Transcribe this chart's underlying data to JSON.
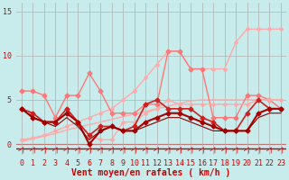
{
  "x": [
    0,
    1,
    2,
    3,
    4,
    5,
    6,
    7,
    8,
    9,
    10,
    11,
    12,
    13,
    14,
    15,
    16,
    17,
    18,
    19,
    20,
    21,
    22,
    23
  ],
  "background_color": "#c8ecec",
  "grid_color": "#b0b0b0",
  "xlabel": "Vent moyen/en rafales ( km/h )",
  "xlabel_color": "#cc0000",
  "yticks": [
    0,
    5,
    10,
    15
  ],
  "ylim": [
    -1.2,
    16
  ],
  "xlim": [
    -0.5,
    23.5
  ],
  "lines": [
    {
      "y": [
        0.3,
        0.6,
        0.9,
        1.2,
        1.6,
        1.9,
        2.2,
        2.5,
        2.8,
        3.1,
        3.4,
        3.7,
        4.0,
        4.3,
        4.6,
        4.9,
        5.0,
        5.0,
        5.0,
        5.0,
        5.0,
        5.0,
        5.0,
        5.0
      ],
      "color": "#ffaaaa",
      "lw": 1.0,
      "marker": null,
      "ms": 0,
      "zorder": 2
    },
    {
      "y": [
        0.5,
        0.7,
        1.0,
        1.5,
        2.0,
        2.5,
        3.0,
        3.5,
        4.0,
        5.0,
        6.0,
        7.5,
        9.0,
        10.5,
        10.5,
        8.5,
        8.5,
        8.5,
        8.5,
        11.5,
        13.0,
        13.0,
        13.0,
        13.0
      ],
      "color": "#ffaaaa",
      "lw": 1.0,
      "marker": "D",
      "ms": 2.0,
      "zorder": 2
    },
    {
      "y": [
        6.0,
        6.0,
        5.5,
        3.0,
        5.5,
        5.5,
        8.0,
        6.0,
        3.5,
        3.5,
        3.5,
        4.5,
        4.5,
        10.5,
        10.5,
        8.5,
        8.5,
        3.0,
        3.0,
        3.0,
        5.5,
        5.5,
        5.0,
        4.0
      ],
      "color": "#ff7777",
      "lw": 1.0,
      "marker": "D",
      "ms": 2.5,
      "zorder": 3
    },
    {
      "y": [
        4.0,
        3.5,
        2.5,
        2.5,
        4.0,
        2.5,
        1.0,
        0.5,
        0.5,
        2.5,
        2.5,
        3.5,
        4.0,
        5.0,
        4.5,
        4.5,
        4.5,
        4.5,
        4.5,
        4.5,
        4.5,
        5.0,
        5.0,
        5.0
      ],
      "color": "#ffaaaa",
      "lw": 1.0,
      "marker": "D",
      "ms": 2.0,
      "zorder": 3
    },
    {
      "y": [
        4.0,
        3.5,
        2.5,
        2.5,
        4.0,
        2.5,
        1.0,
        2.0,
        2.0,
        1.5,
        2.0,
        4.5,
        5.0,
        4.0,
        4.0,
        4.0,
        3.0,
        2.5,
        1.5,
        1.5,
        3.5,
        5.0,
        4.0,
        4.0
      ],
      "color": "#cc2222",
      "lw": 1.2,
      "marker": "D",
      "ms": 2.5,
      "zorder": 4
    },
    {
      "y": [
        4.0,
        3.0,
        2.5,
        2.5,
        3.5,
        2.5,
        0.0,
        1.5,
        2.0,
        1.5,
        1.5,
        2.5,
        3.0,
        3.5,
        3.5,
        3.0,
        2.5,
        2.0,
        1.5,
        1.5,
        1.5,
        3.5,
        4.0,
        4.0
      ],
      "color": "#aa0000",
      "lw": 1.5,
      "marker": "D",
      "ms": 2.5,
      "zorder": 5
    },
    {
      "y": [
        4.0,
        3.0,
        2.5,
        2.0,
        3.0,
        2.0,
        0.5,
        1.5,
        2.0,
        1.5,
        1.5,
        2.0,
        2.5,
        3.0,
        3.0,
        2.5,
        2.0,
        1.5,
        1.5,
        1.5,
        1.5,
        3.0,
        3.5,
        3.5
      ],
      "color": "#880000",
      "lw": 0.8,
      "marker": null,
      "ms": 0,
      "zorder": 5
    }
  ],
  "arrow_color": "#cc2222",
  "tick_fontsize": 6,
  "label_fontsize": 7
}
